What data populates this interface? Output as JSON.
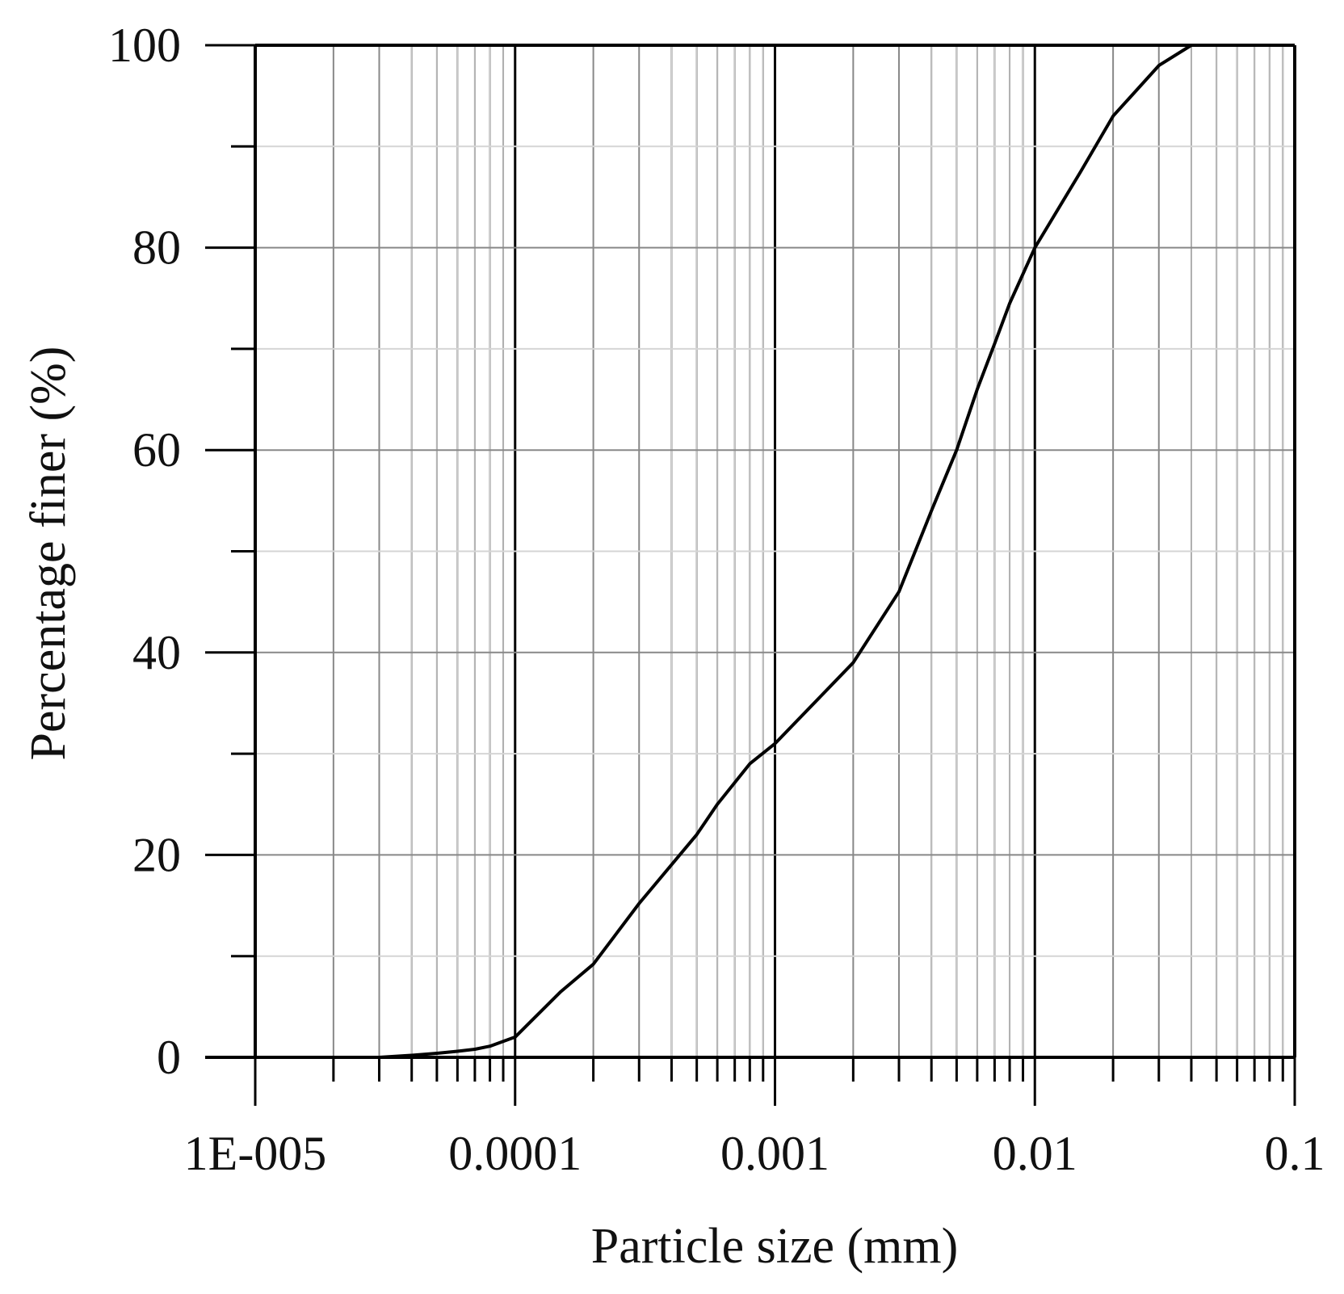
{
  "chart_data": {
    "type": "line",
    "title": "",
    "xlabel": "Particle size (mm)",
    "ylabel": "Percentage finer (%)",
    "x_scale": "log",
    "xlim": [
      1e-05,
      0.1
    ],
    "ylim": [
      0,
      100
    ],
    "grid": true,
    "x_tick_labels": [
      "1E-005",
      "0.0001",
      "0.001",
      "0.01",
      "0.1"
    ],
    "y_tick_labels": [
      "0",
      "20",
      "40",
      "60",
      "80",
      "100"
    ],
    "series": [
      {
        "x": [
          3e-05,
          4e-05,
          5e-05,
          6e-05,
          7e-05,
          8e-05,
          0.0001,
          0.00015,
          0.0002,
          0.0003,
          0.0005,
          0.0006,
          0.0008,
          0.001,
          0.002,
          0.003,
          0.004,
          0.005,
          0.006,
          0.007,
          0.008,
          0.01,
          0.015,
          0.02,
          0.03,
          0.04
        ],
        "y": [
          0.0,
          0.2,
          0.4,
          0.6,
          0.8,
          1.1,
          2.0,
          6.5,
          9.2,
          15.2,
          22.0,
          25.0,
          29.0,
          31.0,
          39.0,
          46.0,
          54.0,
          60.0,
          66.0,
          70.5,
          74.5,
          80.0,
          87.5,
          93.0,
          98.0,
          100.0
        ]
      }
    ],
    "colors": {
      "line": "#000000",
      "major_grid": "#888888",
      "minor_grid": "#d5d5d5",
      "axis": "#000000",
      "background": "#ffffff"
    }
  }
}
